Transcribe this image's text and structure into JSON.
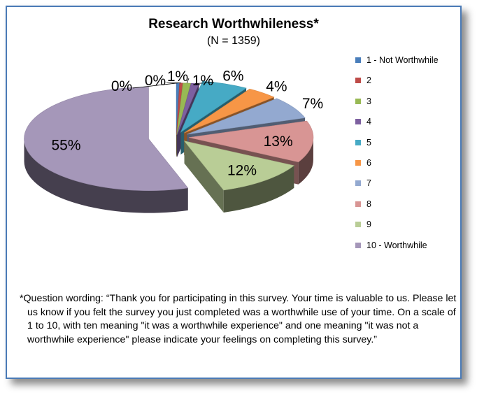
{
  "chart_data": {
    "type": "pie",
    "title": "Research Worthwhileness*",
    "subtitle": "(N = 1359)",
    "categories": [
      "1 - Not Worthwhile",
      "2",
      "3",
      "4",
      "5",
      "6",
      "7",
      "8",
      "9",
      "10 - Worthwhile"
    ],
    "values": [
      0.4,
      0.4,
      1,
      1,
      6,
      4,
      7,
      13,
      12,
      55
    ],
    "data_labels": [
      "0%",
      "0%",
      "1%",
      "1%",
      "6%",
      "4%",
      "7%",
      "13%",
      "12%",
      "55%"
    ],
    "colors": [
      "#4a7ebb",
      "#be4b48",
      "#98b954",
      "#7d60a0",
      "#46aac5",
      "#f79646",
      "#93a9d0",
      "#d89594",
      "#b9cd96",
      "#a597b9"
    ],
    "legend_position": "right",
    "exploded": true,
    "three_d": true
  },
  "note": "*Question wording: “Thank you for participating in this survey. Your time is valuable to us. Please let us know if you felt the survey you just completed was a worthwhile use of your time. On a scale of 1 to 10, with ten meaning \"it was a worthwhile experience\" and one meaning \"it was not a worthwhile experience\" please indicate your feelings on completing this survey.”"
}
